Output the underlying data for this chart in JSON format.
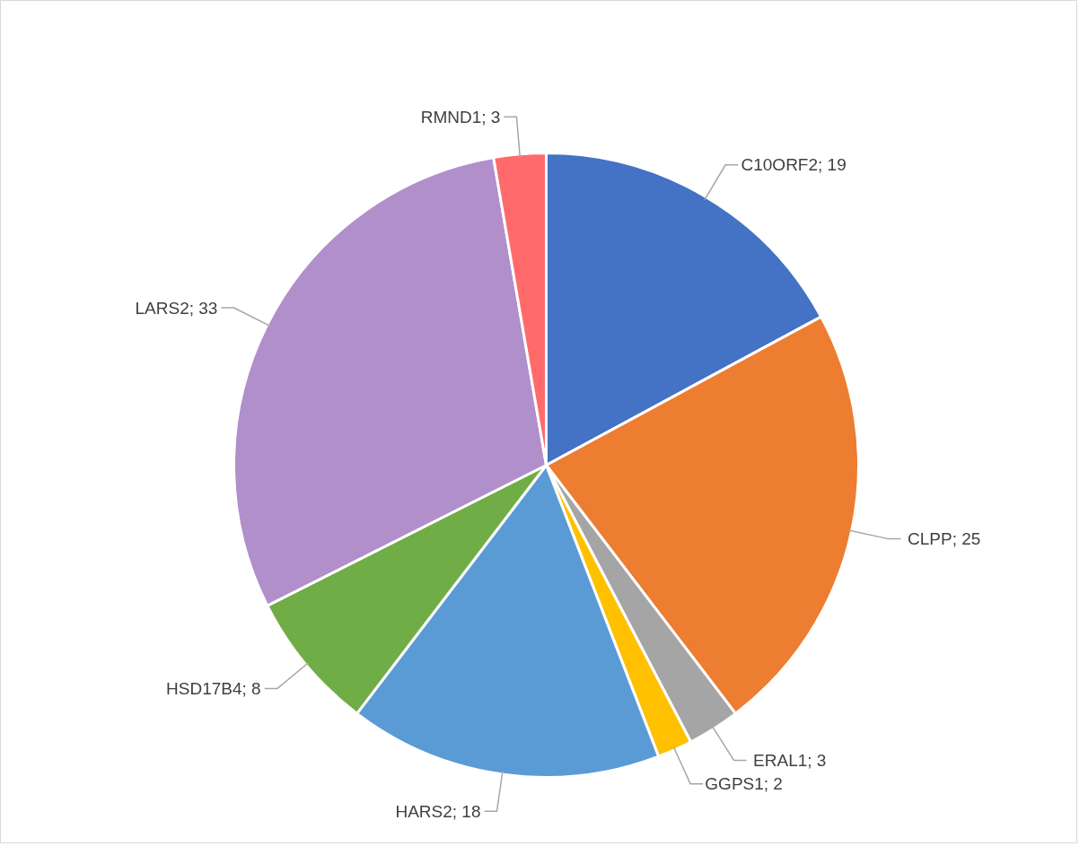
{
  "chart_data": {
    "type": "pie",
    "categories": [
      "C10ORF2",
      "CLPP",
      "ERAL1",
      "GGPS1",
      "HARS2",
      "HSD17B4",
      "LARS2",
      "RMND1"
    ],
    "values": [
      19,
      25,
      3,
      2,
      18,
      8,
      33,
      3
    ],
    "colors": [
      "#4472c4",
      "#ed7d31",
      "#a5a5a5",
      "#ffc000",
      "#5b9bd5",
      "#70ad47",
      "#b08fcb",
      "#ff6b6b"
    ],
    "value_labels": [
      "; 19",
      "; 25",
      "; 3",
      "; 2",
      "; 18",
      "; 8",
      "; 33",
      "; 3"
    ]
  }
}
